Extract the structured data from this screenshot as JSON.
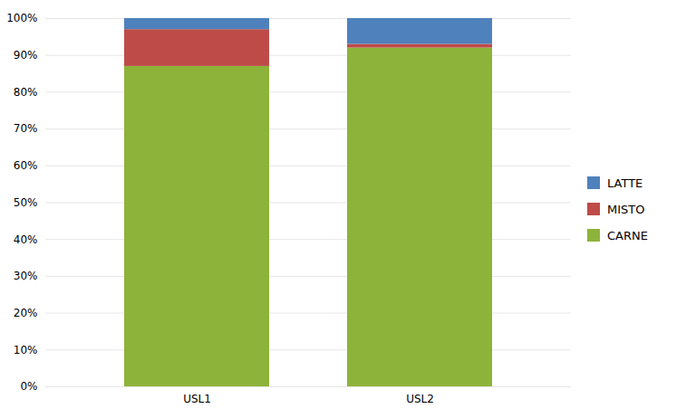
{
  "chart_data": {
    "type": "bar",
    "stacked": true,
    "categories": [
      "USL1",
      "USL2"
    ],
    "series": [
      {
        "name": "CARNE",
        "color": "#8DB33A",
        "values": [
          0.87,
          0.92
        ]
      },
      {
        "name": "MISTO",
        "color": "#BE4B48",
        "values": [
          0.1,
          0.01
        ]
      },
      {
        "name": "LATTE",
        "color": "#4F81BD",
        "values": [
          0.03,
          0.07
        ]
      }
    ],
    "ylim": [
      0,
      1.0
    ],
    "yticks": [
      {
        "value": 0.0,
        "label": "0%"
      },
      {
        "value": 0.1,
        "label": "10%"
      },
      {
        "value": 0.2,
        "label": "20%"
      },
      {
        "value": 0.3,
        "label": "30%"
      },
      {
        "value": 0.4,
        "label": "40%"
      },
      {
        "value": 0.5,
        "label": "50%"
      },
      {
        "value": 0.6,
        "label": "60%"
      },
      {
        "value": 0.7,
        "label": "70%"
      },
      {
        "value": 0.8,
        "label": "80%"
      },
      {
        "value": 0.9,
        "label": "90%"
      },
      {
        "value": 1.0,
        "label": "100%"
      }
    ],
    "grid": true,
    "legend": "right"
  }
}
